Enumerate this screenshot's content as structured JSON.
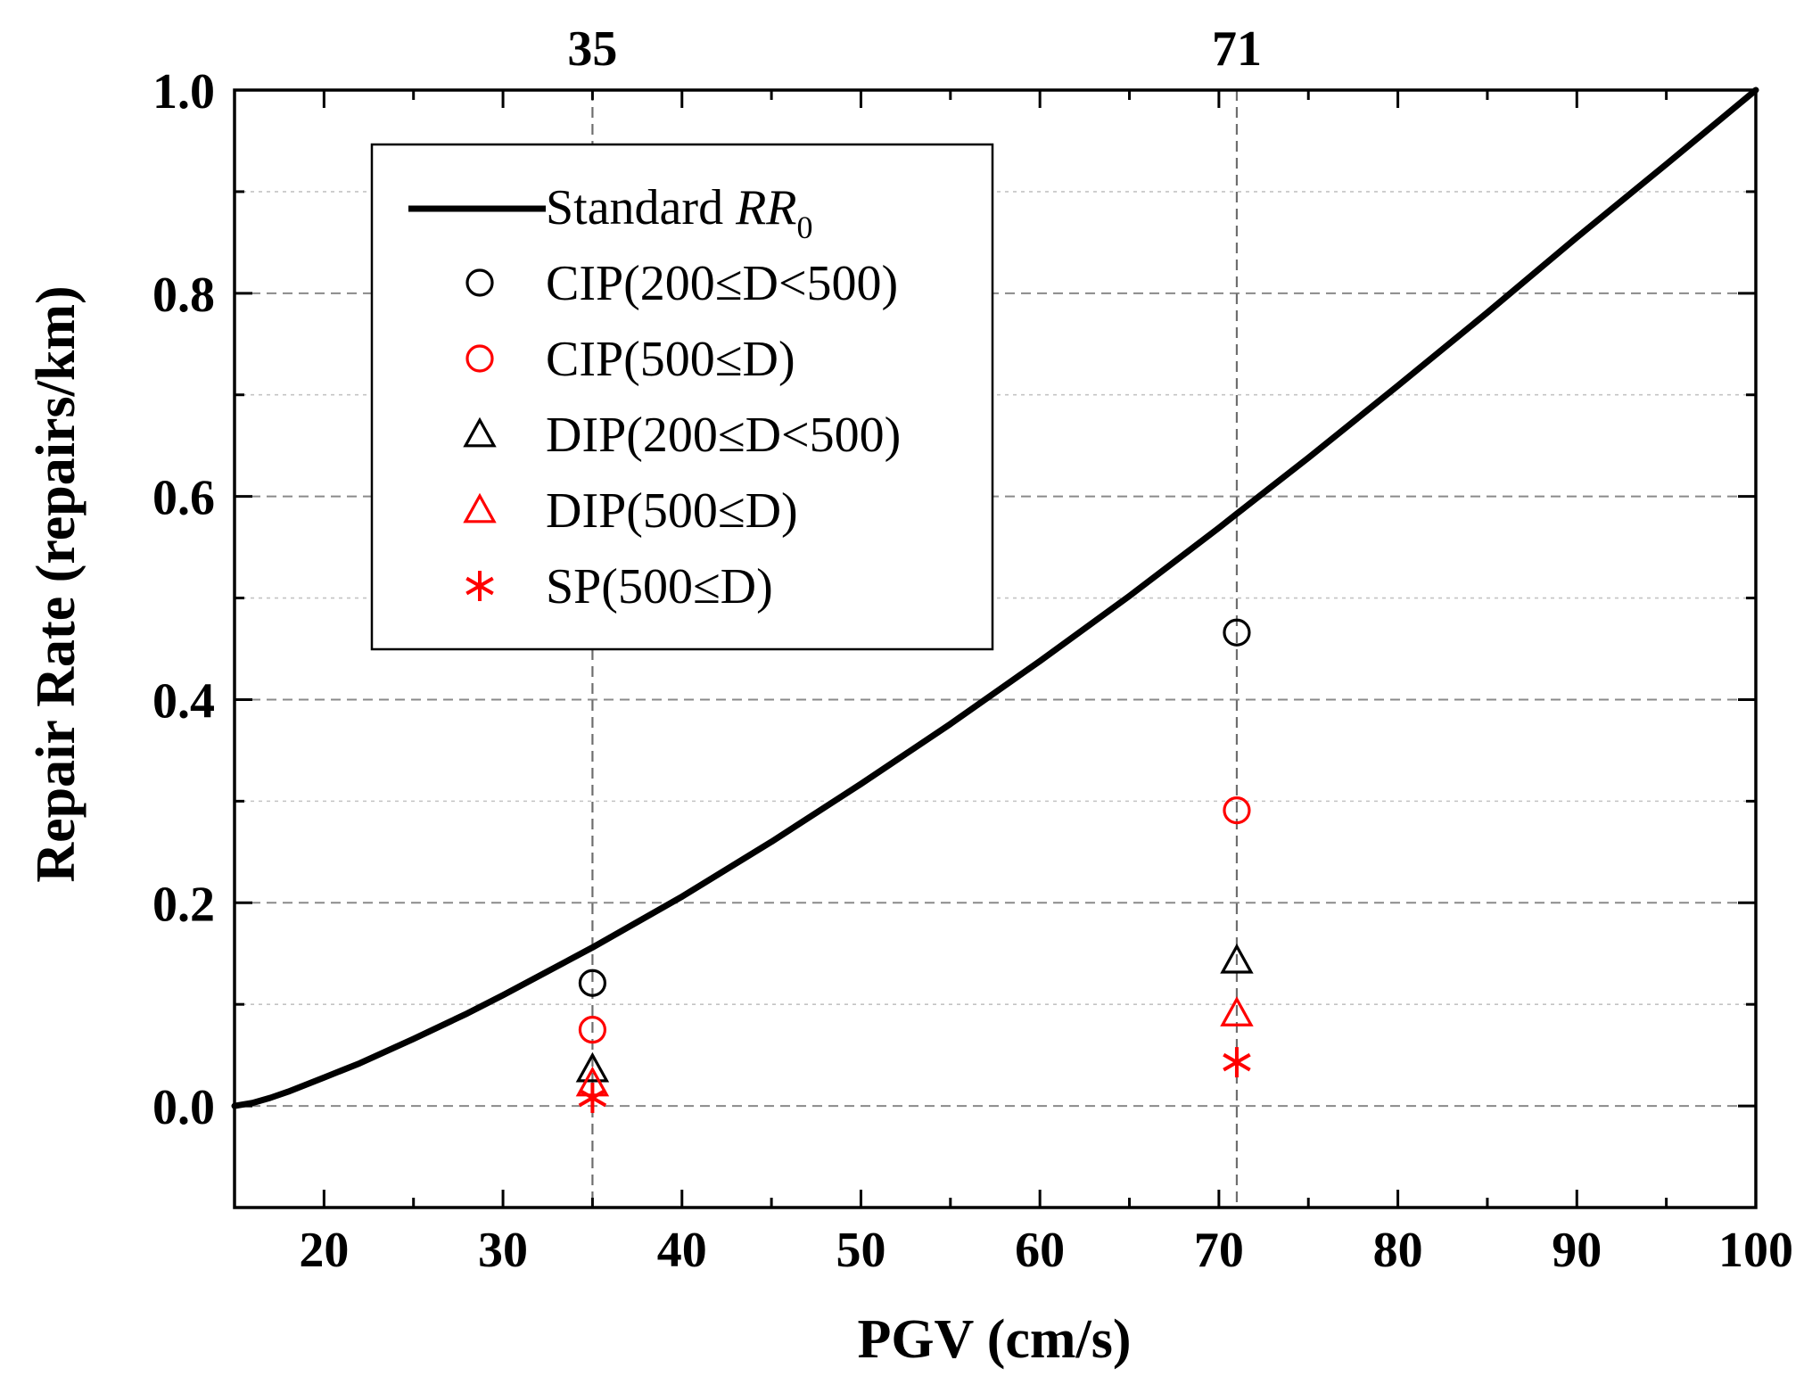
{
  "chart_data": {
    "type": "scatter",
    "xlabel": "PGV (cm/s)",
    "ylabel": "Repair Rate (repairs/km)",
    "xlim": [
      15,
      100
    ],
    "ylim": [
      -0.1,
      1.0
    ],
    "x_ticks": [
      20,
      30,
      40,
      50,
      60,
      70,
      80,
      90,
      100
    ],
    "x_tick_labels": [
      "20",
      "30",
      "40",
      "50",
      "60",
      "70",
      "80",
      "90",
      "100"
    ],
    "y_ticks": [
      0.0,
      0.2,
      0.4,
      0.6,
      0.8,
      1.0
    ],
    "y_tick_labels": [
      "0.0",
      "0.2",
      "0.4",
      "0.6",
      "0.8",
      "1.0"
    ],
    "top_ticks": [
      35,
      71
    ],
    "top_tick_labels": [
      "35",
      "71"
    ],
    "reference_lines_x": [
      35,
      71
    ],
    "grid": true,
    "legend_position": "top-left",
    "series": [
      {
        "name_prefix": "Standard ",
        "name_italic": "RR",
        "name_subscript": "0",
        "kind": "line",
        "color": "#000000",
        "x": [
          15,
          16,
          17,
          18,
          20,
          22,
          25,
          28,
          30,
          35,
          40,
          45,
          50,
          55,
          60,
          65,
          70,
          71,
          75,
          80,
          85,
          90,
          95,
          100
        ],
        "y": [
          0.0,
          0.003,
          0.008,
          0.014,
          0.028,
          0.042,
          0.066,
          0.091,
          0.109,
          0.156,
          0.206,
          0.26,
          0.317,
          0.376,
          0.438,
          0.502,
          0.569,
          0.583,
          0.638,
          0.709,
          0.781,
          0.855,
          0.927,
          1.0
        ]
      },
      {
        "name": "CIP(200≤D<500)",
        "kind": "marker",
        "marker": "circle",
        "color": "#000000",
        "x": [
          35,
          71
        ],
        "y": [
          0.121,
          0.466
        ]
      },
      {
        "name": "CIP(500≤D)",
        "kind": "marker",
        "marker": "circle",
        "color": "#ff0000",
        "x": [
          35,
          71
        ],
        "y": [
          0.075,
          0.291
        ]
      },
      {
        "name": "DIP(200≤D<500)",
        "kind": "marker",
        "marker": "triangle",
        "color": "#000000",
        "x": [
          35,
          71
        ],
        "y": [
          0.036,
          0.143
        ]
      },
      {
        "name": "DIP(500≤D)",
        "kind": "marker",
        "marker": "triangle",
        "color": "#ff0000",
        "x": [
          35,
          71
        ],
        "y": [
          0.022,
          0.091
        ]
      },
      {
        "name": " SP(500≤D)",
        "kind": "marker",
        "marker": "asterisk",
        "color": "#ff0000",
        "x": [
          35,
          71
        ],
        "y": [
          0.008,
          0.043
        ]
      }
    ]
  }
}
